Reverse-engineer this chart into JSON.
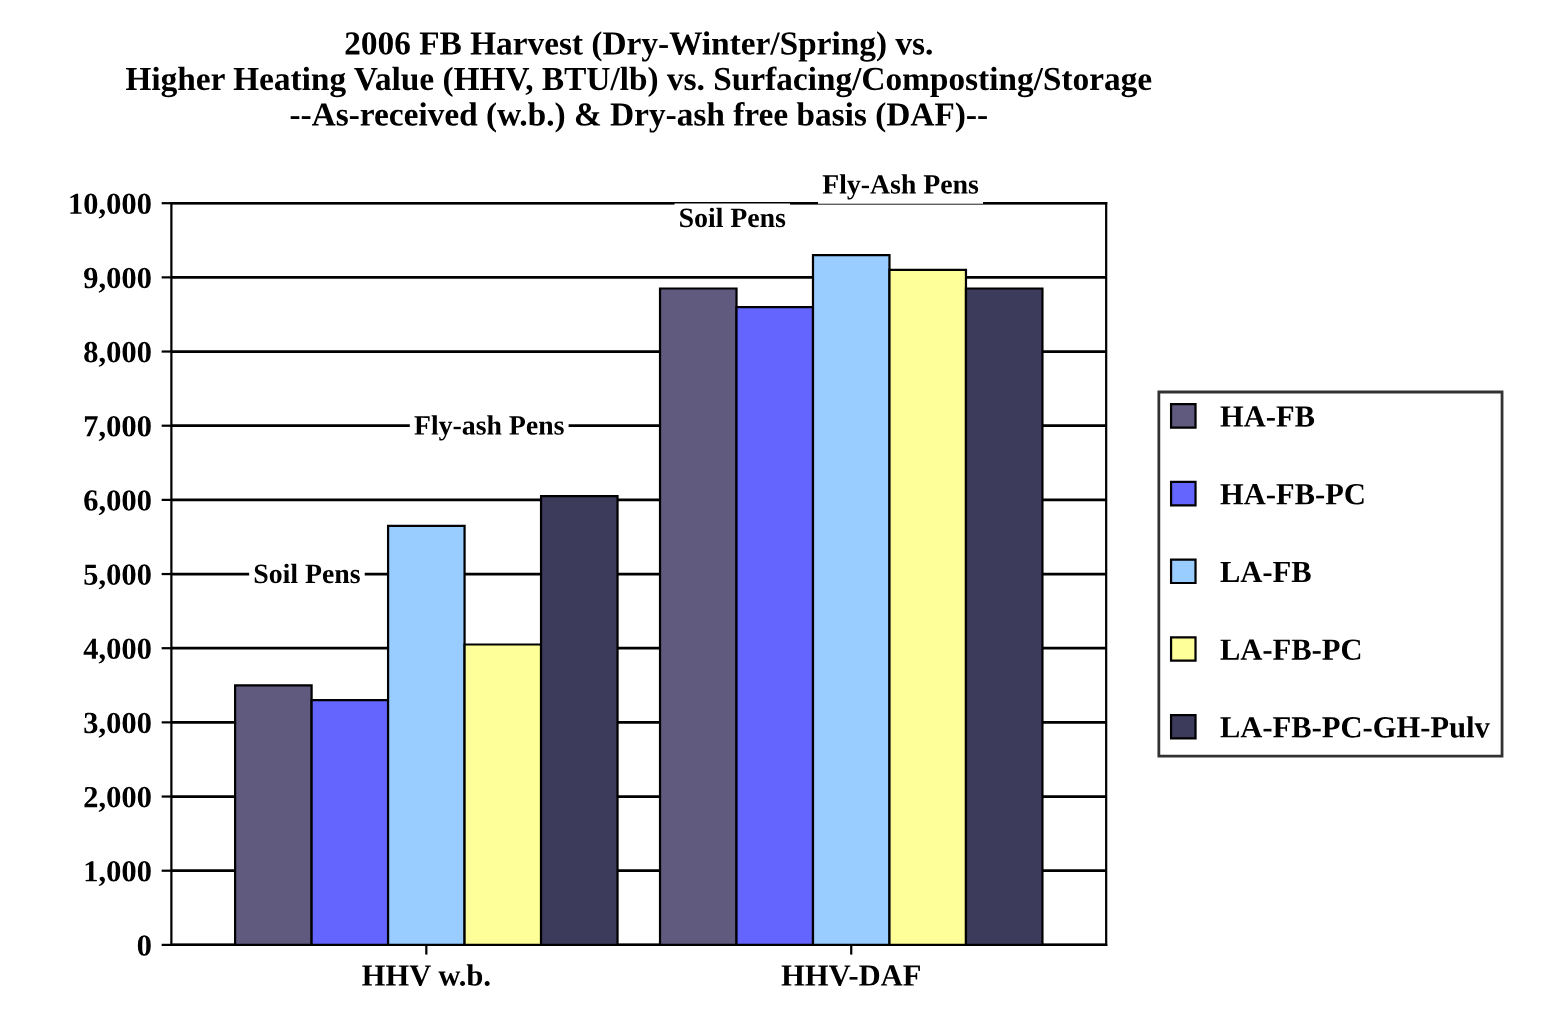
{
  "chart_data": {
    "type": "bar",
    "title": "2006 FB Harvest (Dry-Winter/Spring) vs.\nHigher Heating Value (HHV, BTU/lb) vs. Surfacing/Composting/Storage\n--As-received (w.b.) & Dry-ash free basis (DAF)--",
    "categories": [
      "HHV w.b.",
      "HHV-DAF"
    ],
    "series": [
      {
        "name": "HA-FB",
        "color": "#5f5a7e",
        "values": [
          3500,
          8850
        ]
      },
      {
        "name": "HA-FB-PC",
        "color": "#6464fe",
        "values": [
          3300,
          8600
        ]
      },
      {
        "name": "LA-FB",
        "color": "#99ccff",
        "values": [
          5650,
          9300
        ]
      },
      {
        "name": "LA-FB-PC",
        "color": "#ffff99",
        "values": [
          4050,
          9100
        ]
      },
      {
        "name": "LA-FB-PC-GH-Pulv",
        "color": "#3d3b5c",
        "values": [
          6050,
          8850
        ]
      }
    ],
    "ylim": [
      0,
      10000
    ],
    "yticks": [
      {
        "value": 0,
        "label": "0"
      },
      {
        "value": 1000,
        "label": "1,000"
      },
      {
        "value": 2000,
        "label": "2,000"
      },
      {
        "value": 3000,
        "label": "3,000"
      },
      {
        "value": 4000,
        "label": "4,000"
      },
      {
        "value": 5000,
        "label": "5,000"
      },
      {
        "value": 6000,
        "label": "6,000"
      },
      {
        "value": 7000,
        "label": "7,000"
      },
      {
        "value": 8000,
        "label": "8,000"
      },
      {
        "value": 9000,
        "label": "9,000"
      },
      {
        "value": 10000,
        "label": "10,000"
      }
    ],
    "grid": "y",
    "legend": "right",
    "annotations": [
      "Soil Pens",
      "Fly-ash Pens",
      "Soil Pens",
      "Fly-Ash Pens"
    ]
  }
}
